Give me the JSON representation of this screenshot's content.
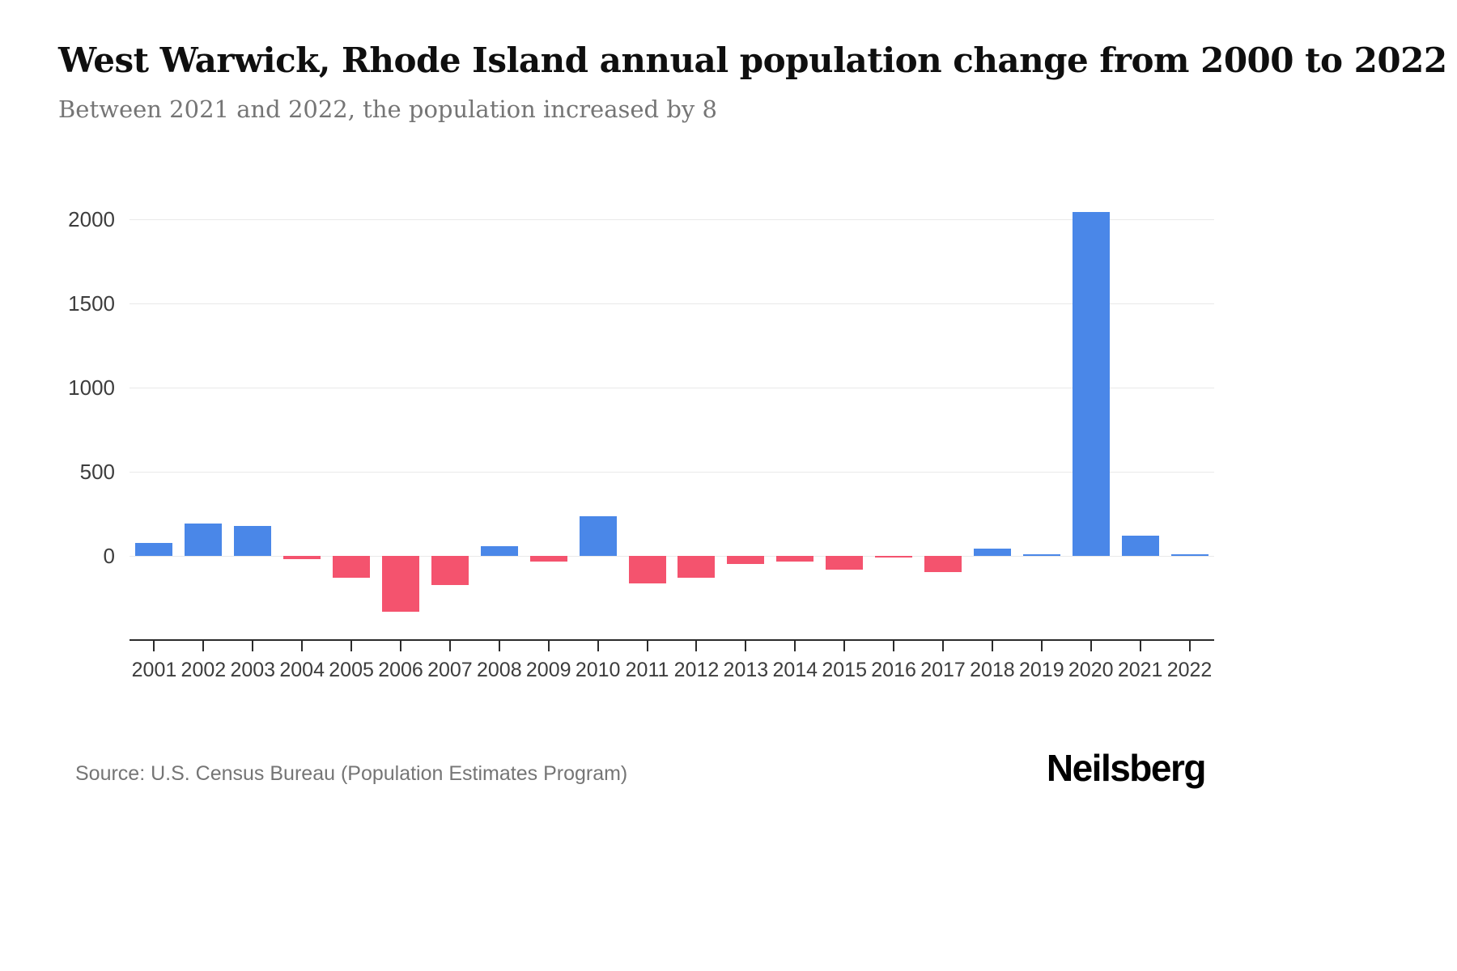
{
  "header": {
    "title": "West Warwick, Rhode Island annual population change from 2000 to 2022",
    "subtitle": "Between 2021 and 2022, the population increased by 8"
  },
  "footer": {
    "source": "Source: U.S. Census Bureau (Population Estimates Program)",
    "brand": "Neilsberg"
  },
  "chart_data": {
    "type": "bar",
    "title": "West Warwick, Rhode Island annual population change from 2000 to 2022",
    "xlabel": "",
    "ylabel": "",
    "categories": [
      "2001",
      "2002",
      "2003",
      "2004",
      "2005",
      "2006",
      "2007",
      "2008",
      "2009",
      "2010",
      "2011",
      "2012",
      "2013",
      "2014",
      "2015",
      "2016",
      "2017",
      "2018",
      "2019",
      "2020",
      "2021",
      "2022"
    ],
    "values": [
      75,
      190,
      178,
      -18,
      -130,
      -330,
      -175,
      57,
      -35,
      235,
      -165,
      -130,
      -50,
      -35,
      -80,
      -5,
      -95,
      45,
      6,
      2045,
      118,
      8
    ],
    "yticks": [
      0,
      500,
      1000,
      1500,
      2000
    ],
    "ylim": [
      -400,
      2150
    ],
    "grid": true,
    "legend": "none",
    "colors": {
      "positive": "#4a87e8",
      "negative": "#f4536e"
    }
  }
}
